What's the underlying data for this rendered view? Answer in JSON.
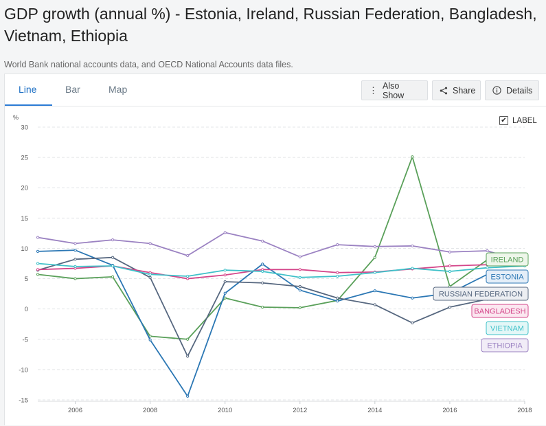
{
  "header": {
    "title": "GDP growth (annual %) - Estonia, Ireland, Russian Federation, Bangladesh, Vietnam, Ethiopia",
    "source": "World Bank national accounts data, and OECD National Accounts data files."
  },
  "tabs": [
    {
      "label": "Line",
      "active": true
    },
    {
      "label": "Bar",
      "active": false
    },
    {
      "label": "Map",
      "active": false
    }
  ],
  "toolbar": {
    "also_show": "Also Show",
    "share": "Share",
    "details": "Details"
  },
  "label_toggle": {
    "label": "LABEL",
    "checked": true
  },
  "chart_data": {
    "type": "line",
    "ylabel": "%",
    "ylim": [
      -15,
      30
    ],
    "yticks": [
      -15,
      -10,
      -5,
      0,
      5,
      10,
      15,
      20,
      25,
      30
    ],
    "xlim": [
      2005,
      2018
    ],
    "xticks": [
      2006,
      2008,
      2010,
      2012,
      2014,
      2016,
      2018
    ],
    "grid": "horizontal-dashed",
    "x": [
      2005,
      2006,
      2007,
      2008,
      2009,
      2010,
      2011,
      2012,
      2013,
      2014,
      2015,
      2016,
      2017,
      2018
    ],
    "series": [
      {
        "name": "IRELAND",
        "color": "#5aa05a",
        "label_bg": "#eef6ea",
        "values": [
          5.7,
          5.0,
          5.3,
          -4.5,
          -5.0,
          1.8,
          0.3,
          0.2,
          1.4,
          8.5,
          25.1,
          3.7,
          8.1,
          8.2
        ]
      },
      {
        "name": "ESTONIA",
        "color": "#2b77b4",
        "label_bg": "#e4eef8",
        "values": [
          9.5,
          9.7,
          7.2,
          -5.1,
          -14.4,
          2.6,
          7.4,
          3.1,
          1.3,
          3.0,
          1.8,
          2.6,
          5.7,
          4.8
        ]
      },
      {
        "name": "RUSSIAN FEDERATION",
        "color": "#56677f",
        "label_bg": "#eceef2",
        "values": [
          6.4,
          8.2,
          8.5,
          5.2,
          -7.8,
          4.5,
          4.3,
          3.7,
          1.8,
          0.7,
          -2.3,
          0.3,
          1.6,
          2.3
        ]
      },
      {
        "name": "BANGLADESH",
        "color": "#d4468a",
        "label_bg": "#fbe7f0",
        "values": [
          6.5,
          6.7,
          7.1,
          6.0,
          5.0,
          5.6,
          6.5,
          6.5,
          6.0,
          6.1,
          6.6,
          7.1,
          7.3,
          7.9
        ]
      },
      {
        "name": "VIETNAM",
        "color": "#3fc1c9",
        "label_bg": "#e3f7f7",
        "values": [
          7.5,
          7.0,
          7.1,
          5.7,
          5.4,
          6.4,
          6.2,
          5.2,
          5.4,
          6.0,
          6.7,
          6.2,
          6.8,
          7.1
        ]
      },
      {
        "name": "ETHIOPIA",
        "color": "#9b82c2",
        "label_bg": "#f1ecf7",
        "values": [
          11.8,
          10.8,
          11.4,
          10.8,
          8.8,
          12.6,
          11.2,
          8.6,
          10.6,
          10.3,
          10.4,
          9.4,
          9.6,
          7.7
        ]
      }
    ]
  }
}
